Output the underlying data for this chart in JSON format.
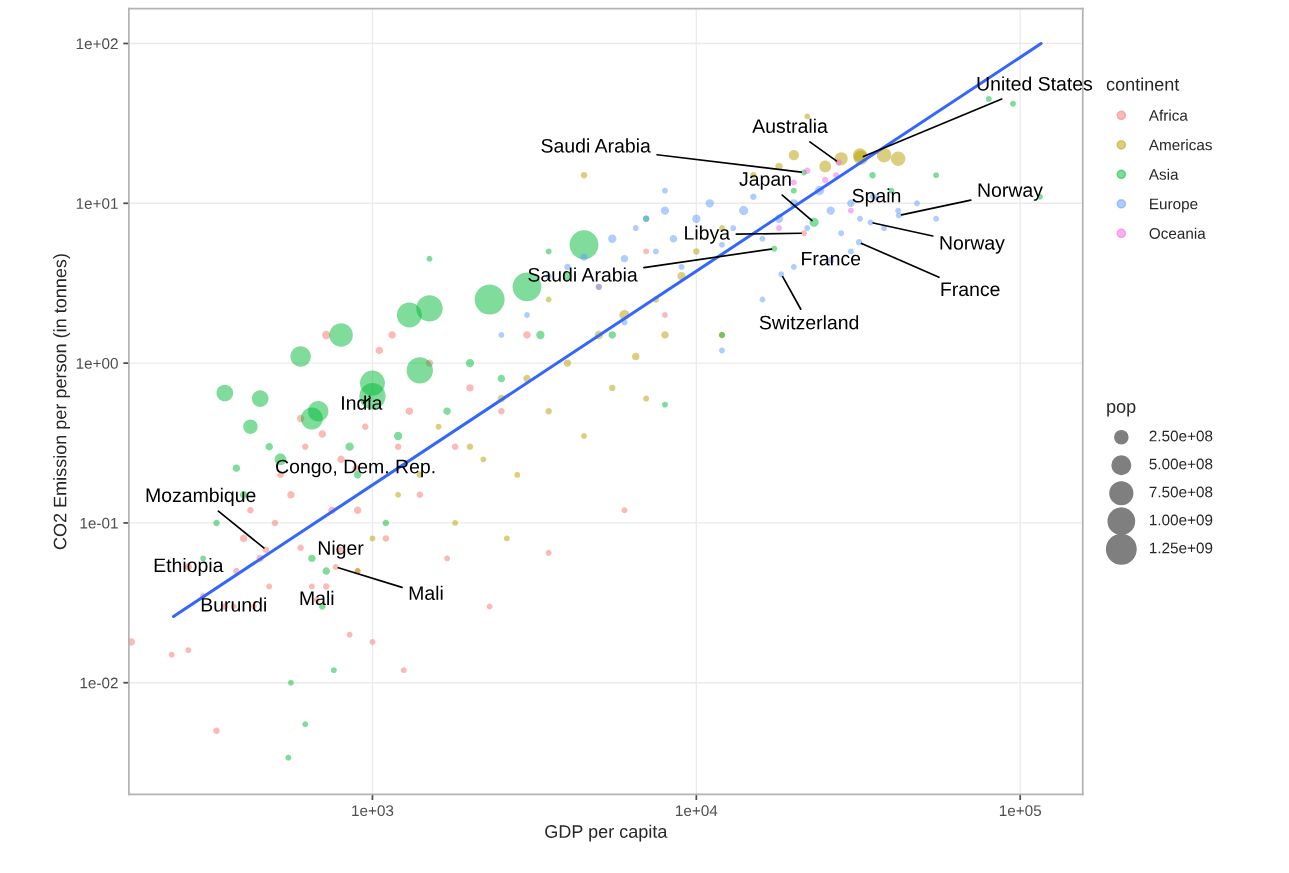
{
  "chart_data": {
    "type": "bubble",
    "xlabel": "GDP per capita",
    "ylabel": "CO2 Emission per person (in tonnes)",
    "legend_title": "continent",
    "log": "xy",
    "grid": true,
    "legend": "right",
    "marker": "circle",
    "xlim": [
      177,
      156000
    ],
    "ylim": [
      0.002,
      165
    ],
    "xticks": [
      {
        "value": 1000,
        "label": "1e+03"
      },
      {
        "value": 10000,
        "label": "1e+04"
      },
      {
        "value": 100000,
        "label": "1e+05"
      }
    ],
    "yticks": [
      {
        "value": 0.01,
        "label": "1e-02"
      },
      {
        "value": 0.1,
        "label": "1e-01"
      },
      {
        "value": 1,
        "label": "1e+00"
      },
      {
        "value": 10,
        "label": "1e+01"
      },
      {
        "value": 100,
        "label": "1e+02"
      }
    ],
    "size_legend": [
      {
        "value": 250000000,
        "label": "2.50e+08"
      },
      {
        "value": 500000000,
        "label": "5.00e+08"
      },
      {
        "value": 750000000,
        "label": "7.50e+08"
      },
      {
        "value": 1000000000,
        "label": "1.00e+09"
      },
      {
        "value": 1250000000,
        "label": "1.25e+09"
      }
    ],
    "series": [
      {
        "name": "Africa",
        "color": "#f8766d",
        "x": [
          180,
          240,
          270,
          300,
          330,
          350,
          380,
          400,
          420,
          450,
          480,
          500,
          520,
          560,
          600,
          620,
          650,
          700,
          720,
          750,
          800,
          850,
          900,
          950,
          1000,
          1050,
          1100,
          1200,
          1250,
          1300,
          1400,
          1500,
          1700,
          1800,
          2000,
          2300,
          2500,
          3000,
          3500,
          5000,
          6000,
          7000,
          8000,
          720,
          600,
          900,
          430,
          1150,
          887,
          469,
          270,
          373,
          797,
          770,
          673,
          21500
        ],
        "values": [
          0.018,
          0.015,
          0.016,
          0.035,
          0.005,
          0.03,
          0.05,
          0.08,
          0.12,
          0.06,
          0.04,
          0.1,
          0.2,
          0.15,
          0.07,
          0.3,
          0.04,
          0.36,
          1.5,
          0.12,
          0.25,
          0.02,
          0.05,
          0.4,
          0.018,
          1.2,
          0.08,
          0.3,
          0.012,
          0.5,
          0.15,
          1.0,
          0.06,
          0.3,
          0.7,
          0.03,
          0.5,
          1.5,
          0.065,
          3.0,
          0.12,
          5.0,
          2.0,
          0.04,
          0.45,
          0.12,
          0.03,
          1.5,
          0.22,
          0.068,
          0.053,
          0.03,
          0.068,
          0.053,
          0.033,
          6.5
        ],
        "sizes": [
          80000000,
          50000000,
          50000000,
          50000000,
          60000000,
          60000000,
          60000000,
          80000000,
          60000000,
          80000000,
          50000000,
          60000000,
          60000000,
          80000000,
          60000000,
          60000000,
          50000000,
          80000000,
          100000000,
          80000000,
          80000000,
          50000000,
          50000000,
          60000000,
          50000000,
          80000000,
          60000000,
          60000000,
          50000000,
          80000000,
          60000000,
          80000000,
          50000000,
          60000000,
          80000000,
          50000000,
          60000000,
          80000000,
          50000000,
          60000000,
          50000000,
          50000000,
          50000000,
          60000000,
          80000000,
          80000000,
          50000000,
          80000000,
          60000000,
          60000000,
          80000000,
          50000000,
          50000000,
          50000000,
          50000000,
          50000000
        ]
      },
      {
        "name": "Americas",
        "color": "#b79f00",
        "x": [
          900,
          1000,
          1200,
          1400,
          1600,
          1800,
          2000,
          2200,
          2500,
          2800,
          3000,
          3500,
          4000,
          4500,
          5000,
          5500,
          6000,
          6500,
          7000,
          7500,
          8000,
          9000,
          10000,
          12000,
          15000,
          18000,
          20000,
          22000,
          25000,
          28000,
          32000,
          38000,
          42000,
          4500,
          3500,
          12000,
          2600,
          32200
        ],
        "values": [
          0.05,
          0.08,
          0.15,
          0.2,
          0.4,
          0.1,
          0.3,
          0.25,
          0.6,
          0.2,
          0.8,
          0.5,
          1.0,
          0.35,
          1.5,
          0.7,
          2.0,
          1.1,
          0.6,
          2.5,
          1.5,
          3.5,
          5.0,
          7,
          15,
          17,
          20,
          35,
          17,
          19,
          20,
          20,
          19,
          15,
          2.5,
          1.5,
          0.08,
          19.3
        ],
        "sizes": [
          50000000,
          50000000,
          50000000,
          60000000,
          50000000,
          50000000,
          60000000,
          50000000,
          80000000,
          50000000,
          80000000,
          60000000,
          80000000,
          50000000,
          100000000,
          60000000,
          150000000,
          80000000,
          50000000,
          60000000,
          80000000,
          100000000,
          60000000,
          50000000,
          60000000,
          80000000,
          150000000,
          50000000,
          200000000,
          250000000,
          280000000,
          300000000,
          300000000,
          60000000,
          50000000,
          60000000,
          50000000,
          300000000
        ]
      },
      {
        "name": "Asia",
        "color": "#00ba38",
        "x": [
          300,
          330,
          350,
          380,
          400,
          420,
          450,
          480,
          520,
          550,
          560,
          600,
          620,
          650,
          680,
          700,
          720,
          760,
          800,
          850,
          900,
          1000,
          1100,
          1200,
          1300,
          1400,
          1500,
          1700,
          2000,
          2300,
          2500,
          3000,
          3300,
          3500,
          4000,
          4500,
          5500,
          7000,
          8000,
          12000,
          20000,
          35000,
          40000,
          55000,
          80000,
          95000,
          115000,
          1500,
          650,
          1000,
          21500,
          17400,
          23100
        ],
        "values": [
          0.06,
          0.1,
          0.65,
          0.22,
          0.15,
          0.4,
          0.6,
          0.3,
          0.25,
          0.0034,
          0.01,
          1.1,
          0.0055,
          0.45,
          0.5,
          0.03,
          0.05,
          0.012,
          1.5,
          0.3,
          0.2,
          0.75,
          0.1,
          0.35,
          2.0,
          0.9,
          2.2,
          0.5,
          1.0,
          2.5,
          0.8,
          3.0,
          1.5,
          5.0,
          3.5,
          5.5,
          1.5,
          8,
          0.55,
          1.5,
          12,
          15,
          12,
          15,
          45,
          42,
          11,
          4.5,
          0.06,
          0.62,
          15.6,
          5.2,
          7.6
        ],
        "sizes": [
          50000000,
          60000000,
          400000000,
          80000000,
          80000000,
          300000000,
          400000000,
          80000000,
          200000000,
          50000000,
          50000000,
          600000000,
          50000000,
          700000000,
          600000000,
          60000000,
          80000000,
          50000000,
          800000000,
          100000000,
          80000000,
          900000000,
          60000000,
          100000000,
          900000000,
          1000000000,
          1000000000,
          80000000,
          100000000,
          1300000000,
          80000000,
          1200000000,
          100000000,
          50000000,
          100000000,
          1200000000,
          80000000,
          60000000,
          50000000,
          50000000,
          50000000,
          60000000,
          50000000,
          50000000,
          50000000,
          50000000,
          50000000,
          50000000,
          80000000,
          1000000000,
          50000000,
          50000000,
          120000000
        ]
      },
      {
        "name": "Europe",
        "color": "#619cff",
        "x": [
          2500,
          3000,
          3500,
          4000,
          4500,
          5000,
          5500,
          6000,
          6500,
          7000,
          7500,
          8000,
          8500,
          9000,
          10000,
          11000,
          12000,
          13000,
          14000,
          15000,
          16000,
          18000,
          20000,
          22000,
          24000,
          26000,
          28000,
          30000,
          32000,
          35000,
          38000,
          42000,
          48000,
          55000,
          12000,
          16000,
          20000,
          6000,
          8000,
          30000,
          36000,
          42200,
          34500,
          26000,
          31800,
          18300
        ],
        "values": [
          1.5,
          2,
          3.5,
          4,
          4.6,
          3,
          6,
          4.5,
          7,
          8,
          5,
          9,
          6,
          4,
          8,
          10,
          5.5,
          7,
          9,
          11,
          6,
          8,
          10,
          7,
          12,
          9,
          6.5,
          10,
          8,
          11,
          7,
          9,
          10,
          8,
          1.2,
          2.5,
          4,
          1.8,
          12,
          5,
          10.9,
          8.4,
          7.6,
          4.4,
          5.7,
          3.6
        ],
        "sizes": [
          50000000,
          50000000,
          50000000,
          60000000,
          80000000,
          50000000,
          100000000,
          80000000,
          50000000,
          60000000,
          50000000,
          100000000,
          80000000,
          50000000,
          100000000,
          100000000,
          50000000,
          50000000,
          120000000,
          60000000,
          50000000,
          100000000,
          100000000,
          50000000,
          120000000,
          100000000,
          50000000,
          80000000,
          50000000,
          50000000,
          50000000,
          50000000,
          50000000,
          50000000,
          50000000,
          50000000,
          50000000,
          50000000,
          50000000,
          50000000,
          50000000,
          50000000,
          50000000,
          60000000,
          60000000,
          50000000
        ]
      },
      {
        "name": "Oceania",
        "color": "#f564e3",
        "x": [
          22000,
          25000,
          30000,
          18000,
          20000,
          27000,
          27500
        ],
        "values": [
          16,
          14,
          9,
          7,
          13.5,
          15,
          18
        ],
        "sizes": [
          60000000,
          60000000,
          50000000,
          50000000,
          50000000,
          50000000,
          60000000
        ]
      },
      {
        "type": "line",
        "marker": "none",
        "color": "#3366ff",
        "x": [
          243,
          116000
        ],
        "values": [
          0.026,
          100
        ]
      }
    ],
    "annotations": [
      "pop",
      {
        "text": "India",
        "x": 1000,
        "y": 0.62
      },
      {
        "text": "Congo, Dem. Rep.",
        "x": 887,
        "y": 0.22
      },
      {
        "text": "Mozambique",
        "x": 469,
        "y": 0.068
      },
      {
        "text": "Ethiopia",
        "x": 270,
        "y": 0.053
      },
      {
        "text": "Burundi",
        "x": 373,
        "y": 0.03
      },
      {
        "text": "Niger",
        "x": 797,
        "y": 0.068
      },
      {
        "text": "Mali",
        "x": 770,
        "y": 0.053
      },
      {
        "text": "Mali",
        "x": 673,
        "y": 0.033
      },
      {
        "text": "Saudi Arabia",
        "x": 21500,
        "y": 15.6
      },
      {
        "text": "Australia",
        "x": 27500,
        "y": 18
      },
      {
        "text": "United States",
        "x": 32200,
        "y": 19.3
      },
      {
        "text": "Japan",
        "x": 23100,
        "y": 7.6
      },
      {
        "text": "Spain",
        "x": 36000,
        "y": 10.9
      },
      {
        "text": "Norway",
        "x": 42200,
        "y": 8.4
      },
      {
        "text": "Norway",
        "x": 34500,
        "y": 7.6
      },
      {
        "text": "Libya",
        "x": 21500,
        "y": 6.5
      },
      {
        "text": "Saudi Arabia",
        "x": 17400,
        "y": 5.2
      },
      {
        "text": "France",
        "x": 26000,
        "y": 4.4
      },
      {
        "text": "France",
        "x": 31800,
        "y": 5.7
      },
      {
        "text": "Switzerland",
        "x": 18300,
        "y": 3.6
      }
    ]
  }
}
